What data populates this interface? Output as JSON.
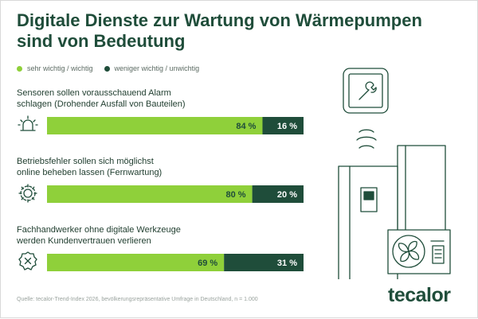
{
  "title_line1": "Digitale Dienste zur Wartung von Wärmepumpen",
  "title_line2": "sind von Bedeutung",
  "legend": [
    {
      "label": "sehr wichtig / wichtig",
      "color": "#8fd03a"
    },
    {
      "label": "weniger wichtig / unwichtig",
      "color": "#1f4d3a"
    }
  ],
  "questions": [
    {
      "line1": "Sensoren sollen vorausschauend Alarm",
      "line2": "schlagen (Drohender Ausfall von Bauteilen)",
      "icon": "alarm-siren-icon"
    },
    {
      "line1": "Betriebsfehler sollen sich möglichst",
      "line2": "online beheben lassen (Fernwartung)",
      "icon": "gear-settings-icon"
    },
    {
      "line1": "Fachhandwerker ohne digitale Werkzeuge",
      "line2": "werden Kundenvertrauen verlieren",
      "icon": "x-badge-icon"
    }
  ],
  "chart_data": {
    "type": "bar",
    "orientation": "horizontal-stacked",
    "categories": [
      "Sensoren sollen vorausschauend Alarm schlagen (Drohender Ausfall von Bauteilen)",
      "Betriebsfehler sollen sich möglichst online beheben lassen (Fernwartung)",
      "Fachhandwerker ohne digitale Werkzeuge werden Kundenvertrauen verlieren"
    ],
    "series": [
      {
        "name": "sehr wichtig / wichtig",
        "values": [
          84,
          80,
          69
        ],
        "color": "#8fd03a"
      },
      {
        "name": "weniger wichtig / unwichtig",
        "values": [
          16,
          20,
          31
        ],
        "color": "#1f4d3a"
      }
    ],
    "value_suffix": " %",
    "xlim": [
      0,
      100
    ]
  },
  "source": "Quelle: tecalor-Trend-Index 2026, bevölkerungsrepräsentative Umfrage in Deutschland, n = 1.000",
  "brand": "tecalor"
}
